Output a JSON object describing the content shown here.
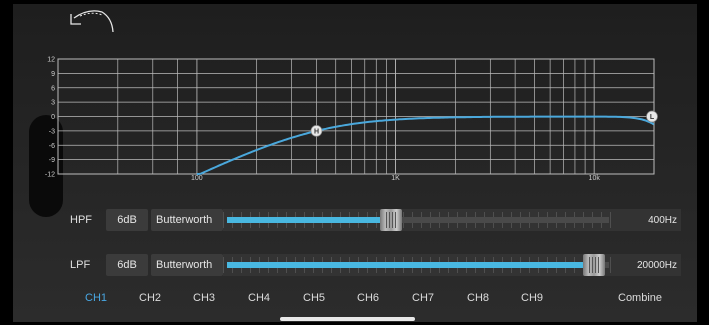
{
  "eq": {
    "y_ticks": [
      "12",
      "9",
      "6",
      "3",
      "0",
      "-3",
      "-6",
      "-9",
      "-12"
    ],
    "x_ticks": [
      "100",
      "1K",
      "10k"
    ],
    "hpf_handle_label": "H",
    "lpf_handle_label": "L",
    "curve_color": "#4aa8dc"
  },
  "filters": {
    "hpf": {
      "label": "HPF",
      "slope": "6dB",
      "type": "Butterworth",
      "frequency": "400Hz",
      "level": 0.43
    },
    "lpf": {
      "label": "LPF",
      "slope": "6dB",
      "type": "Butterworth",
      "frequency": "20000Hz",
      "level": 0.96
    }
  },
  "channels": {
    "tabs": [
      "CH1",
      "CH2",
      "CH3",
      "CH4",
      "CH5",
      "CH6",
      "CH7",
      "CH8",
      "CH9"
    ],
    "active": "CH1",
    "combine": "Combine"
  },
  "colors": {
    "accent": "#49b8e1",
    "active_tab": "#49a8e4"
  },
  "icons": {
    "back": "undo-arrow-icon"
  }
}
